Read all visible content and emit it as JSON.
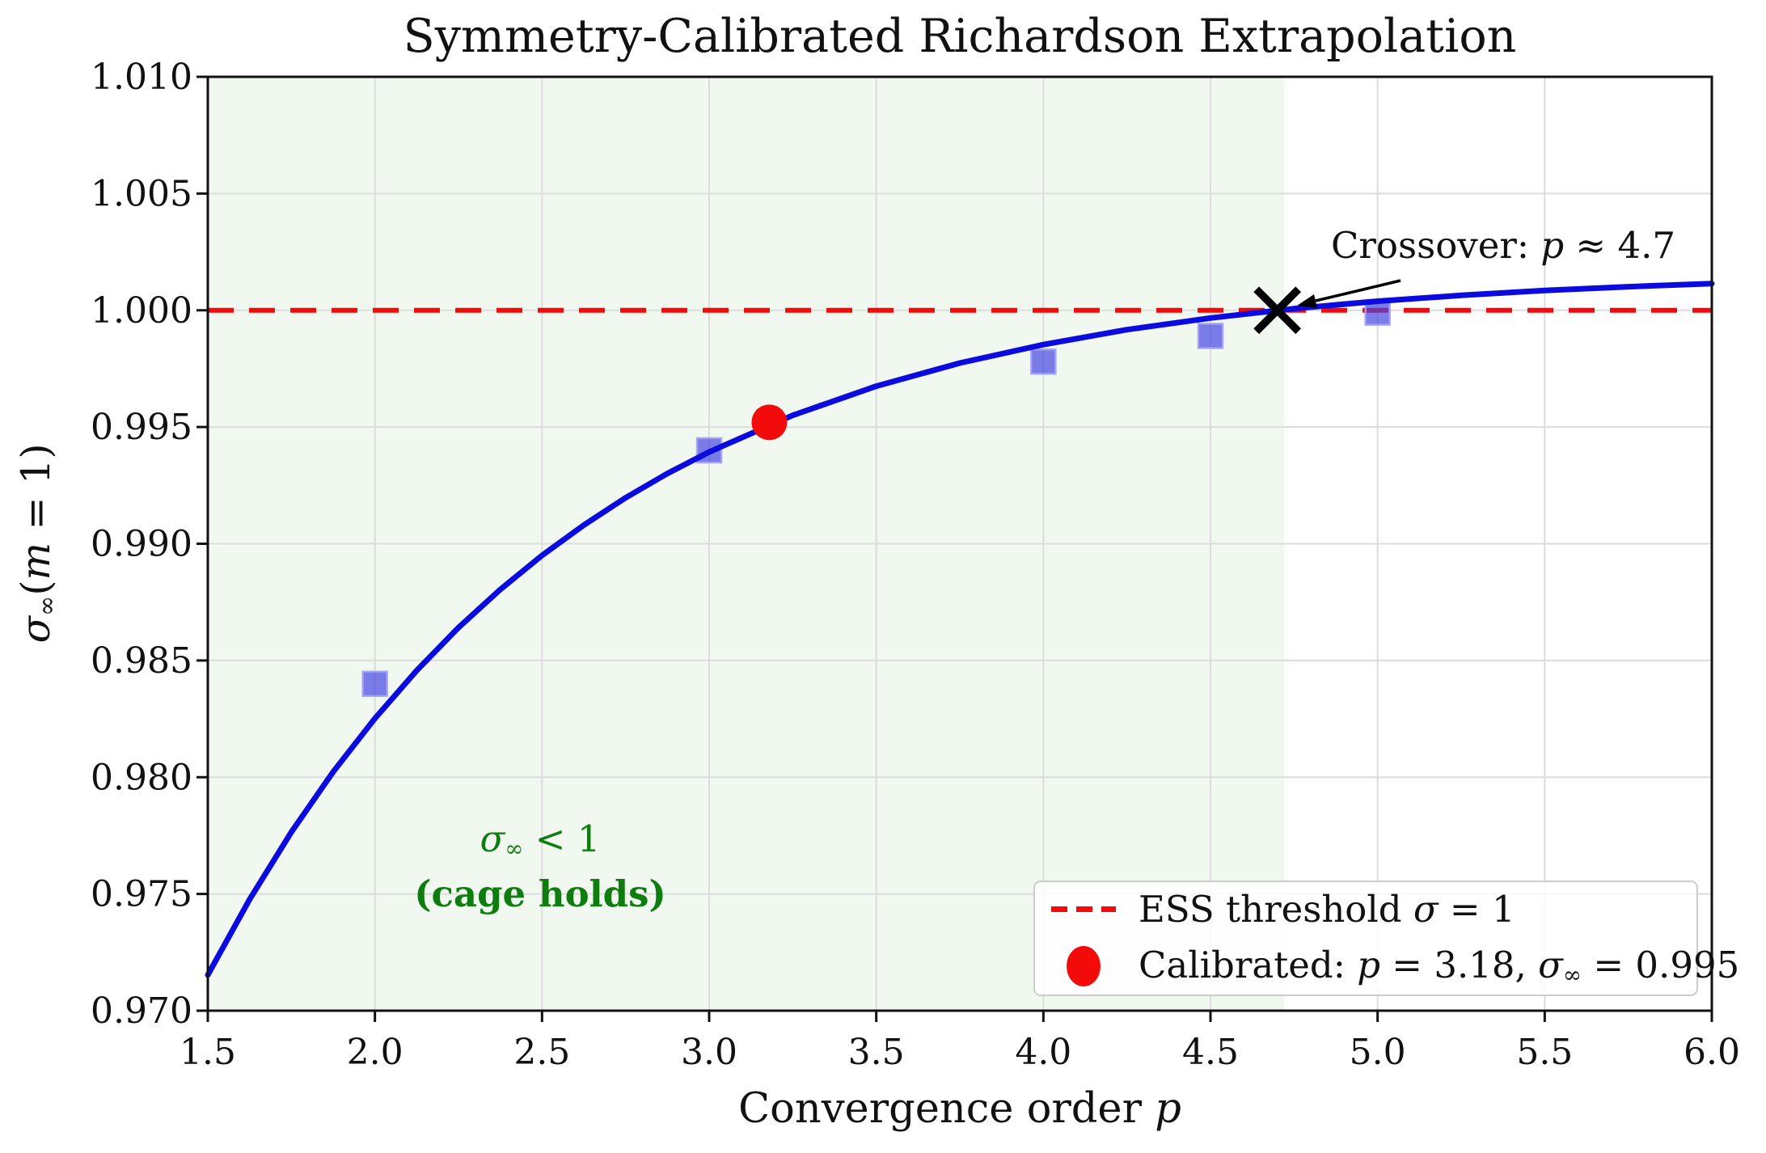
{
  "title": "Symmetry-Calibrated Richardson Extrapolation",
  "axis": {
    "xlabel_text": "Convergence order ",
    "xlabel_var": "p",
    "ylabel_sym": "σ",
    "ylabel_sub": "∞",
    "ylabel_open": "(",
    "ylabel_var": "m",
    "ylabel_close": " = 1)"
  },
  "legend": {
    "threshold": {
      "pre": "ESS threshold ",
      "sym": "σ",
      "post": " = 1"
    },
    "calibrated": {
      "pre": "Calibrated: ",
      "var": "p",
      "mid": " = 3.18, ",
      "sym": "σ",
      "sub": "∞",
      "post": " = 0.995"
    }
  },
  "annotations": {
    "crossover": {
      "pre": "Crossover: ",
      "var": "p",
      "post": " ≈ 4.7"
    },
    "cage": {
      "line1_sym": "σ",
      "line1_sub": "∞",
      "line1_rest": " < 1",
      "line2": "(cage holds)"
    }
  },
  "colors": {
    "curve": "#0b0be0",
    "square_fill": "rgba(70,70,225,0.70)",
    "square_edge": "rgba(160,160,250,0.90)",
    "red": "#f30b0b",
    "band": "rgba(0,130,0,0.06)",
    "grid": "#dcdcdc",
    "spine": "#111111",
    "cage_text": "#0e7c0e",
    "marker_black": "#000000"
  },
  "chart_data": {
    "type": "line",
    "title": "Symmetry-Calibrated Richardson Extrapolation",
    "xlabel": "Convergence order p",
    "ylabel": "σ∞(m = 1)",
    "xlim": [
      1.5,
      6.0
    ],
    "ylim": [
      0.97,
      1.01
    ],
    "x_ticks": [
      "1.5",
      "2.0",
      "2.5",
      "3.0",
      "3.5",
      "4.0",
      "4.5",
      "5.0",
      "5.5",
      "6.0"
    ],
    "y_ticks": [
      "0.970",
      "0.975",
      "0.980",
      "0.985",
      "0.990",
      "0.995",
      "1.000",
      "1.005",
      "1.010"
    ],
    "grid": true,
    "legend_position": "lower right",
    "threshold": {
      "y": 1.0,
      "label": "ESS threshold σ = 1",
      "style": "dashed",
      "color": "red"
    },
    "shaded_region": {
      "x_start": 1.5,
      "x_end": 4.72,
      "meaning": "σ∞ < 1 (cage holds)"
    },
    "crossover": {
      "p": 4.7,
      "sigma": 1.0,
      "label": "Crossover: p ≈ 4.7"
    },
    "calibrated_point": {
      "p": 3.18,
      "sigma": 0.9952,
      "label": "Calibrated: p = 3.18, σ∞ = 0.995"
    },
    "data_points": {
      "marker": "square",
      "points": [
        [
          2.0,
          0.984
        ],
        [
          3.0,
          0.994
        ],
        [
          3.18,
          0.9952
        ],
        [
          4.0,
          0.9978
        ],
        [
          4.5,
          0.9989
        ],
        [
          5.0,
          0.9999
        ]
      ]
    },
    "fit_curve": {
      "points": [
        [
          1.5,
          0.97153
        ],
        [
          1.625,
          0.97477
        ],
        [
          1.75,
          0.97765
        ],
        [
          1.875,
          0.98023
        ],
        [
          2.0,
          0.98252
        ],
        [
          2.125,
          0.98457
        ],
        [
          2.25,
          0.98641
        ],
        [
          2.375,
          0.98804
        ],
        [
          2.5,
          0.9895
        ],
        [
          2.625,
          0.9908
        ],
        [
          2.75,
          0.99197
        ],
        [
          2.875,
          0.99301
        ],
        [
          3.0,
          0.99393
        ],
        [
          3.25,
          0.9955
        ],
        [
          3.5,
          0.99675
        ],
        [
          3.75,
          0.99774
        ],
        [
          4.0,
          0.99853
        ],
        [
          4.25,
          0.99917
        ],
        [
          4.5,
          0.99967
        ],
        [
          4.75,
          1.00007
        ],
        [
          5.0,
          1.00039
        ],
        [
          5.25,
          1.00064
        ],
        [
          5.5,
          1.00085
        ],
        [
          5.75,
          1.00101
        ],
        [
          6.0,
          1.00114
        ]
      ]
    }
  }
}
